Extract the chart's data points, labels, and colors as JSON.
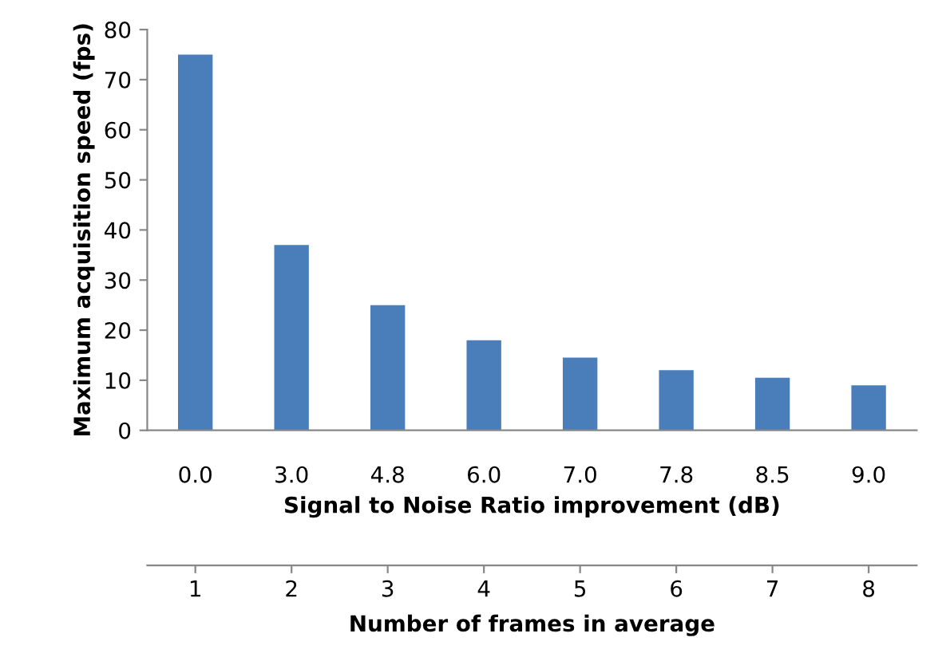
{
  "chart_data": {
    "type": "bar",
    "xlabel": "Signal to Noise Ratio improvement (dB)",
    "ylabel": "Maximum acquisition speed (fps)",
    "x2label": "Number of frames in average",
    "categories": [
      "0.0",
      "3.0",
      "4.8",
      "6.0",
      "7.0",
      "7.8",
      "8.5",
      "9.0"
    ],
    "values": [
      75,
      37,
      25,
      18,
      14.5,
      12,
      10.5,
      9
    ],
    "color": "#4a7ebb",
    "ylim": [
      0,
      80
    ],
    "yticks": [
      0,
      10,
      20,
      30,
      40,
      50,
      60,
      70,
      80
    ],
    "x2lim": [
      0.5,
      8.5
    ],
    "x2ticks": [
      1,
      2,
      3,
      4,
      5,
      6,
      7,
      8
    ],
    "grid": false,
    "legend": false
  }
}
